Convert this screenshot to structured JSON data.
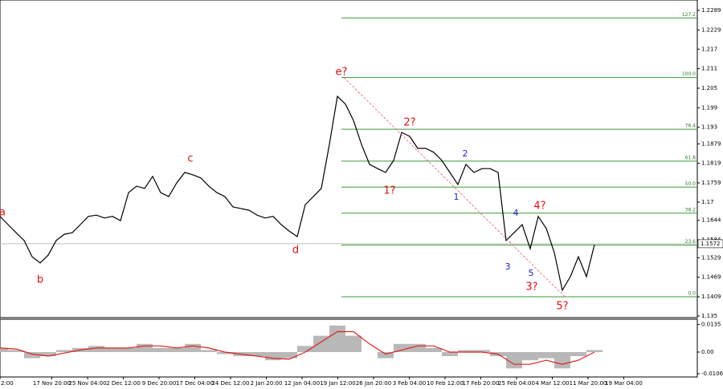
{
  "chart_data": {
    "type": "line",
    "price": {
      "color": "#000000",
      "values": [
        1.1656,
        1.1631,
        1.1606,
        1.1582,
        1.1532,
        1.1513,
        1.1537,
        1.1582,
        1.1601,
        1.1606,
        1.1631,
        1.1656,
        1.166,
        1.1651,
        1.1656,
        1.1643,
        1.1729,
        1.1749,
        1.1742,
        1.1779,
        1.1729,
        1.1717,
        1.1759,
        1.1791,
        1.1784,
        1.1774,
        1.1749,
        1.1729,
        1.1717,
        1.1685,
        1.168,
        1.1675,
        1.166,
        1.1651,
        1.1656,
        1.1631,
        1.1611,
        1.1594,
        1.1692,
        1.1717,
        1.1742,
        1.1877,
        1.2025,
        1.2001,
        1.1951,
        1.1877,
        1.1816,
        1.1803,
        1.1791,
        1.1828,
        1.1914,
        1.1902,
        1.1865,
        1.1865,
        1.1853,
        1.1828,
        1.1791,
        1.1754,
        1.1816,
        1.1791,
        1.1803,
        1.1803,
        1.1791,
        1.1582,
        1.1606,
        1.1631,
        1.1557,
        1.1656,
        1.1619,
        1.1545,
        1.1429,
        1.1471,
        1.1532,
        1.1471,
        1.1569
      ]
    },
    "ylim": [
      1.1345,
      1.2321
    ],
    "yticks": [
      1.2289,
      1.2229,
      1.217,
      1.211,
      1.205,
      1.199,
      1.193,
      1.1879,
      1.1819,
      1.1759,
      1.17,
      1.1644,
      1.1584,
      1.1529,
      1.1469,
      1.1409,
      1.135
    ],
    "current_price": 1.1572,
    "fib_levels": [
      {
        "value": 1.2266,
        "label": "127.2"
      },
      {
        "value": 1.2083,
        "label": "100.0"
      },
      {
        "value": 1.1924,
        "label": "76.4"
      },
      {
        "value": 1.1826,
        "label": "61.8"
      },
      {
        "value": 1.1746,
        "label": "50.0"
      },
      {
        "value": 1.1666,
        "label": "38.2"
      },
      {
        "value": 1.1568,
        "label": "23.6"
      },
      {
        "value": 1.1409,
        "label": "0.0"
      }
    ],
    "fib_color": "#3a9a3a",
    "waves_red": [
      "a",
      "b",
      "c",
      "d",
      "e?",
      "1?",
      "2?",
      "3?",
      "4?",
      "5?"
    ],
    "waves_blue": [
      "1",
      "2",
      "3",
      "4",
      "5"
    ],
    "xlabels": [
      "2:00",
      "17 Nov 20:00",
      "25 Nov 04:00",
      "2 Dec 12:00",
      "9 Dec 20:00",
      "17 Dec 04:00",
      "24 Dec 12:00",
      "2 Jan 20:00",
      "12 Jan 04:00",
      "19 Jan 12:00",
      "26 Jan 20:00",
      "3 Feb 04:00",
      "10 Feb 12:00",
      "17 Feb 20:00",
      "25 Feb 04:00",
      "4 Mar 12:00",
      "11 Mar 20:00",
      "19 Mar 04:00"
    ],
    "macd": {
      "histogram_color": "#b8b8b8",
      "signal_color": "#e02020",
      "histogram": [
        0.002,
        0.001,
        -0.003,
        -0.002,
        0.001,
        0.002,
        0.003,
        0.002,
        0.002,
        0.004,
        0.002,
        0.002,
        0.004,
        0.001,
        -0.001,
        -0.002,
        -0.002,
        -0.004,
        -0.003,
        0.003,
        0.008,
        0.013,
        0.008,
        0.0,
        -0.003,
        0.004,
        0.004,
        0.002,
        -0.002,
        0.001,
        0.001,
        -0.002,
        -0.008,
        -0.004,
        -0.003,
        -0.008,
        -0.002,
        0.001
      ],
      "signal": [
        0.002,
        0.0015,
        -0.001,
        -0.002,
        -0.0005,
        0.001,
        0.002,
        0.002,
        0.002,
        0.003,
        0.003,
        0.002,
        0.003,
        0.002,
        0.0,
        -0.001,
        -0.002,
        -0.003,
        -0.0035,
        0.0,
        0.005,
        0.01,
        0.01,
        0.004,
        -0.001,
        0.001,
        0.003,
        0.003,
        0.0,
        0.0,
        0.0,
        -0.001,
        -0.006,
        -0.006,
        -0.004,
        -0.006,
        -0.004,
        0.0
      ]
    },
    "y2lim": [
      -0.0122,
      0.0161
    ],
    "y2ticks": [
      0.0135,
      {
        "value": 0,
        "label": "0.00"
      },
      -0.0106
    ]
  }
}
